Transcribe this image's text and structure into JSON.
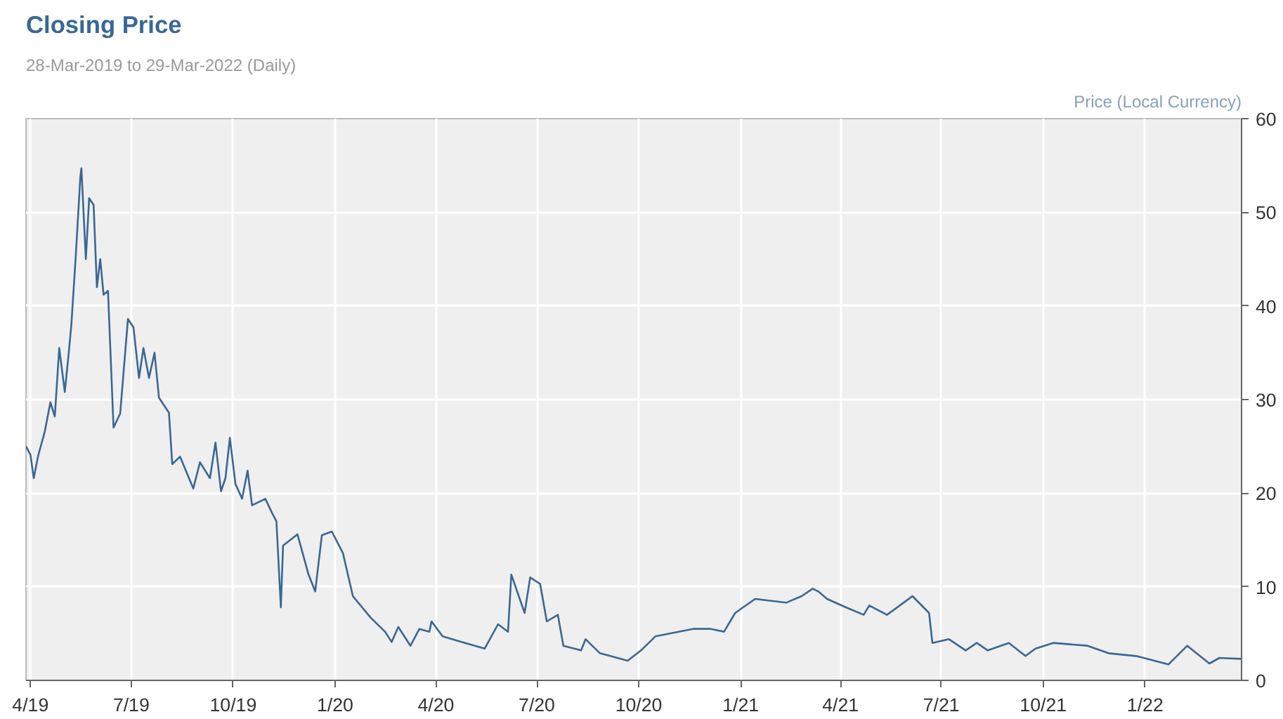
{
  "chart_data": {
    "type": "line",
    "title": "Closing Price",
    "subtitle": "28-Mar-2019 to 29-Mar-2022 (Daily)",
    "ylabel": "Price (Local Currency)",
    "xlim": [
      "2019-03-28",
      "2022-03-29"
    ],
    "ylim": [
      0,
      60
    ],
    "yticks": [
      0,
      10,
      20,
      30,
      40,
      50,
      60
    ],
    "xticks": [
      {
        "value": "2019-04-01",
        "label": "4/19"
      },
      {
        "value": "2019-07-01",
        "label": "7/19"
      },
      {
        "value": "2019-10-01",
        "label": "10/19"
      },
      {
        "value": "2020-01-01",
        "label": "1/20"
      },
      {
        "value": "2020-04-01",
        "label": "4/20"
      },
      {
        "value": "2020-07-01",
        "label": "7/20"
      },
      {
        "value": "2020-10-01",
        "label": "10/20"
      },
      {
        "value": "2021-01-01",
        "label": "1/21"
      },
      {
        "value": "2021-04-01",
        "label": "4/21"
      },
      {
        "value": "2021-07-01",
        "label": "7/21"
      },
      {
        "value": "2021-10-01",
        "label": "10/21"
      },
      {
        "value": "2022-01-01",
        "label": "1/22"
      }
    ],
    "grid": true,
    "marker": "none",
    "line_style": "solid",
    "x": [
      "2019-03-28",
      "2019-04-01",
      "2019-04-04",
      "2019-04-08",
      "2019-04-14",
      "2019-04-19",
      "2019-04-23",
      "2019-04-27",
      "2019-05-02",
      "2019-05-06",
      "2019-05-08",
      "2019-05-12",
      "2019-05-16",
      "2019-05-17",
      "2019-05-21",
      "2019-05-24",
      "2019-05-28",
      "2019-05-31",
      "2019-06-03",
      "2019-06-06",
      "2019-06-10",
      "2019-06-15",
      "2019-06-21",
      "2019-06-28",
      "2019-07-03",
      "2019-07-08",
      "2019-07-12",
      "2019-07-17",
      "2019-07-22",
      "2019-07-26",
      "2019-08-04",
      "2019-08-07",
      "2019-08-14",
      "2019-08-26",
      "2019-09-01",
      "2019-09-10",
      "2019-09-15",
      "2019-09-20",
      "2019-09-24",
      "2019-09-28",
      "2019-10-03",
      "2019-10-09",
      "2019-10-14",
      "2019-10-18",
      "2019-10-30",
      "2019-11-05",
      "2019-11-09",
      "2019-11-13",
      "2019-11-15",
      "2019-11-28",
      "2019-12-08",
      "2019-12-14",
      "2019-12-20",
      "2019-12-29",
      "2020-01-08",
      "2020-01-17",
      "2020-02-02",
      "2020-02-15",
      "2020-02-21",
      "2020-02-27",
      "2020-03-09",
      "2020-03-17",
      "2020-03-26",
      "2020-03-28",
      "2020-04-07",
      "2020-04-24",
      "2020-05-15",
      "2020-05-27",
      "2020-06-05",
      "2020-06-08",
      "2020-06-20",
      "2020-06-25",
      "2020-07-04",
      "2020-07-10",
      "2020-07-20",
      "2020-07-25",
      "2020-08-10",
      "2020-08-14",
      "2020-08-27",
      "2020-09-21",
      "2020-10-03",
      "2020-10-16",
      "2020-11-19",
      "2020-12-05",
      "2020-12-17",
      "2020-12-27",
      "2021-01-14",
      "2021-02-11",
      "2021-02-25",
      "2021-03-07",
      "2021-03-12",
      "2021-03-20",
      "2021-04-06",
      "2021-04-22",
      "2021-04-27",
      "2021-05-13",
      "2021-05-28",
      "2021-06-05",
      "2021-06-20",
      "2021-06-23",
      "2021-07-08",
      "2021-07-23",
      "2021-08-02",
      "2021-08-12",
      "2021-08-31",
      "2021-09-15",
      "2021-09-24",
      "2021-10-10",
      "2021-11-10",
      "2021-11-29",
      "2021-12-24",
      "2022-01-22",
      "2022-02-08",
      "2022-02-28",
      "2022-03-09",
      "2022-03-29"
    ],
    "series": [
      {
        "color": "#3a6795",
        "values": [
          25,
          24.1,
          21.6,
          24,
          26.6,
          29.7,
          28.2,
          35.5,
          30.8,
          35.5,
          38.1,
          45.5,
          53.7,
          54.7,
          45,
          51.5,
          50.8,
          42,
          45,
          41.2,
          41.6,
          27,
          28.5,
          38.6,
          37.7,
          32.3,
          35.5,
          32.3,
          35,
          30.2,
          28.6,
          23.1,
          23.9,
          20.5,
          23.3,
          21.6,
          25.4,
          20.2,
          21.6,
          25.9,
          21,
          19.4,
          22.4,
          18.7,
          19.4,
          17.9,
          17,
          7.8,
          14.4,
          15.6,
          11.3,
          9.5,
          15.5,
          15.9,
          13.6,
          9,
          6.7,
          5.2,
          4.1,
          5.7,
          3.7,
          5.5,
          5.2,
          6.3,
          4.7,
          4.1,
          3.4,
          6,
          5.2,
          11.3,
          7.2,
          11,
          10.3,
          6.3,
          7,
          3.7,
          3.2,
          4.4,
          2.9,
          2.1,
          3.2,
          4.7,
          5.5,
          5.5,
          5.2,
          7.2,
          8.7,
          8.3,
          9,
          9.8,
          9.5,
          8.7,
          7.8,
          7,
          8,
          7,
          8.3,
          9,
          7.2,
          4,
          4.4,
          3.2,
          4,
          3.2,
          4,
          2.6,
          3.4,
          4,
          3.7,
          2.9,
          2.6,
          1.7,
          3.7,
          1.8,
          2.4,
          2.3
        ]
      }
    ]
  }
}
